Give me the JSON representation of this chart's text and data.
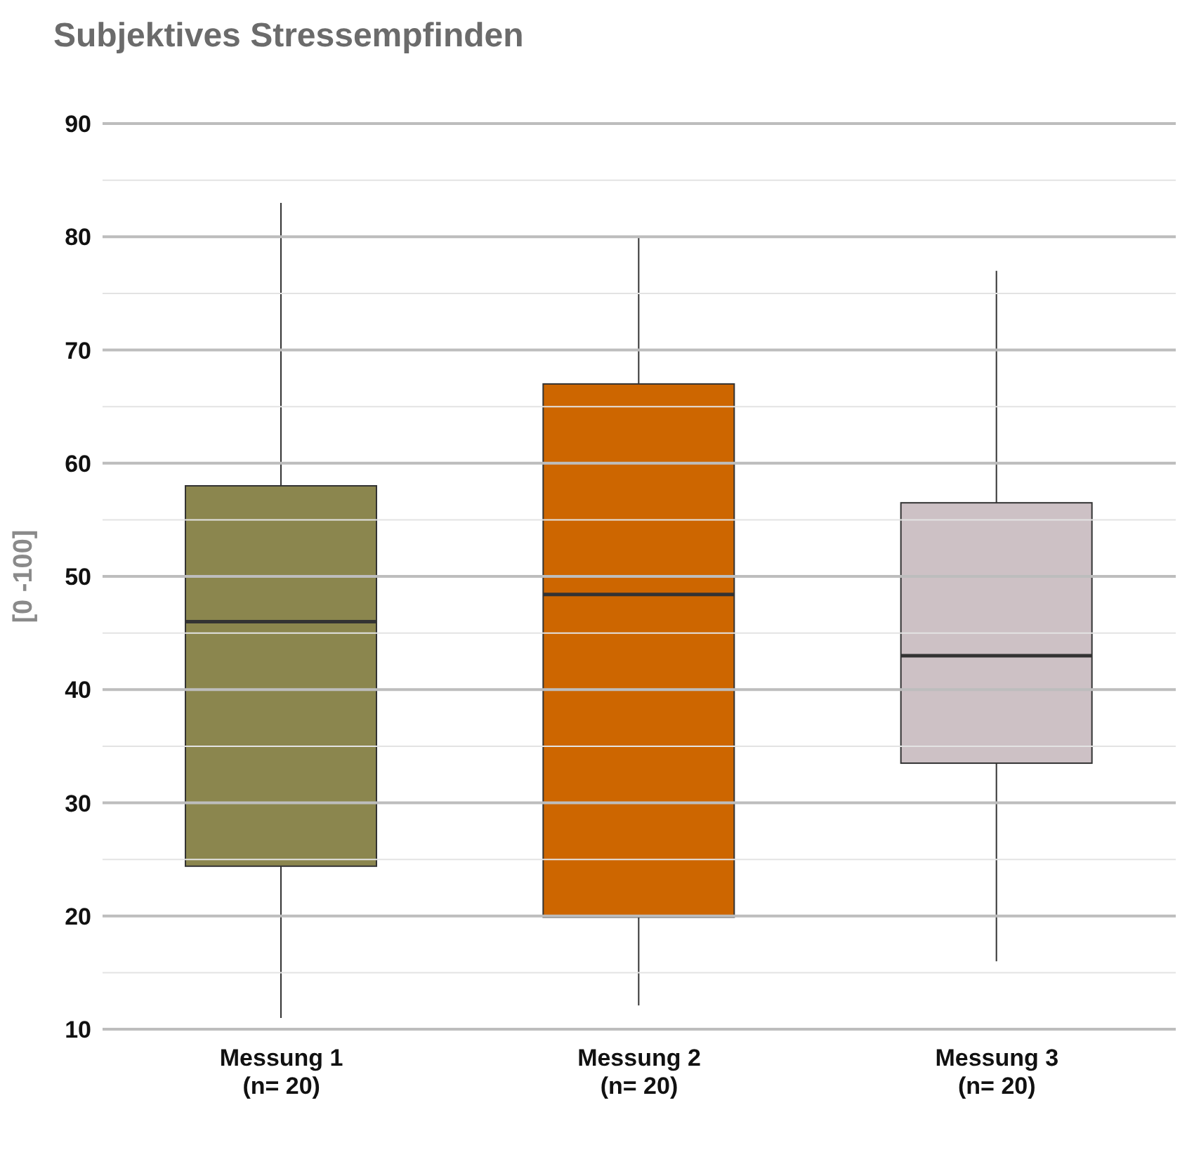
{
  "chart_data": {
    "type": "box",
    "title": "Subjektives Stressempfinden",
    "ylabel": "[0 -100]",
    "categories": [
      "Messung 1\n(n= 20)",
      "Messung 2\n(n= 20)",
      "Messung 3\n(n= 20)"
    ],
    "colors": [
      "#8b864e",
      "#cd6600",
      "#cdc1c5"
    ],
    "boxes": [
      {
        "low": 11,
        "q1": 24.4,
        "median": 46,
        "q3": 58,
        "high": 83
      },
      {
        "low": 12.1,
        "q1": 19.9,
        "median": 48.4,
        "q3": 67,
        "high": 80
      },
      {
        "low": 16,
        "q1": 33.5,
        "median": 43,
        "q3": 56.5,
        "high": 77
      }
    ],
    "ylim": [
      10,
      90
    ],
    "yticks": [
      10,
      {
        "value": 15,
        "label": null
      },
      20,
      {
        "value": 25,
        "label": null
      },
      30,
      {
        "value": 35,
        "label": null
      },
      40,
      {
        "value": 45,
        "label": null
      },
      50,
      {
        "value": 55,
        "label": null
      },
      60,
      {
        "value": 65,
        "label": null
      },
      70,
      {
        "value": 75,
        "label": null
      },
      80,
      {
        "value": 85,
        "label": null
      },
      90
    ],
    "grid": "y"
  }
}
